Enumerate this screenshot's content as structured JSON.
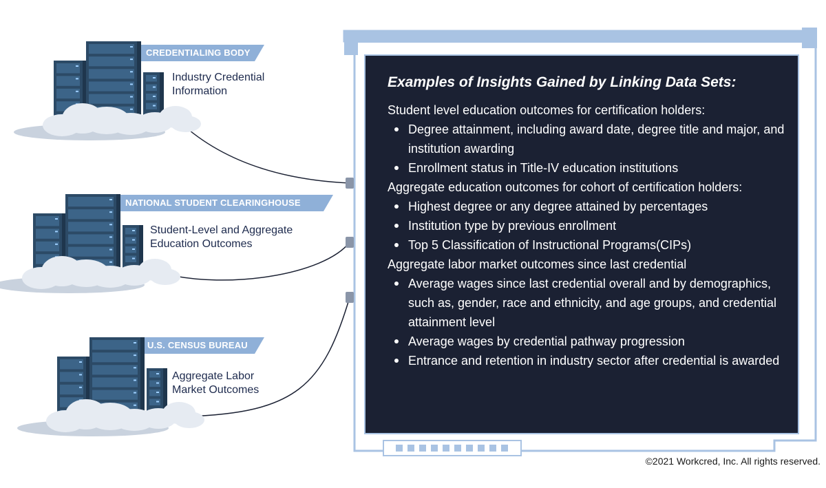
{
  "sources": [
    {
      "tag": "CREDENTIALING BODY",
      "label": "Industry Credential Information"
    },
    {
      "tag": "NATIONAL STUDENT CLEARINGHOUSE",
      "label": "Student-Level and Aggregate Education Outcomes"
    },
    {
      "tag": "U.S. CENSUS BUREAU",
      "label": "Aggregate Labor Market Outcomes"
    }
  ],
  "insights": {
    "title": "Examples of Insights Gained by Linking Data Sets:",
    "sections": [
      {
        "heading": "Student level education outcomes for certification holders:",
        "bullets": [
          "Degree attainment, including award date, degree title and major, and institution awarding",
          "Enrollment status in Title-IV education institutions"
        ]
      },
      {
        "heading": "Aggregate education outcomes for cohort of certification holders:",
        "bullets": [
          "Highest degree or any degree attained by percentages",
          "Institution type by previous enrollment",
          "Top 5 Classification of Instructional Programs(CIPs)"
        ]
      },
      {
        "heading": "Aggregate labor market outcomes since last credential",
        "bullets": [
          "Average wages since last credential overall and by demographics, such as, gender, race and ethnicity, and age groups, and credential attainment level",
          "Average wages by credential pathway progression",
          "Entrance and retention in industry sector after credential is awarded"
        ]
      }
    ]
  },
  "copyright": "©2021 Workcred, Inc. All rights reserved."
}
